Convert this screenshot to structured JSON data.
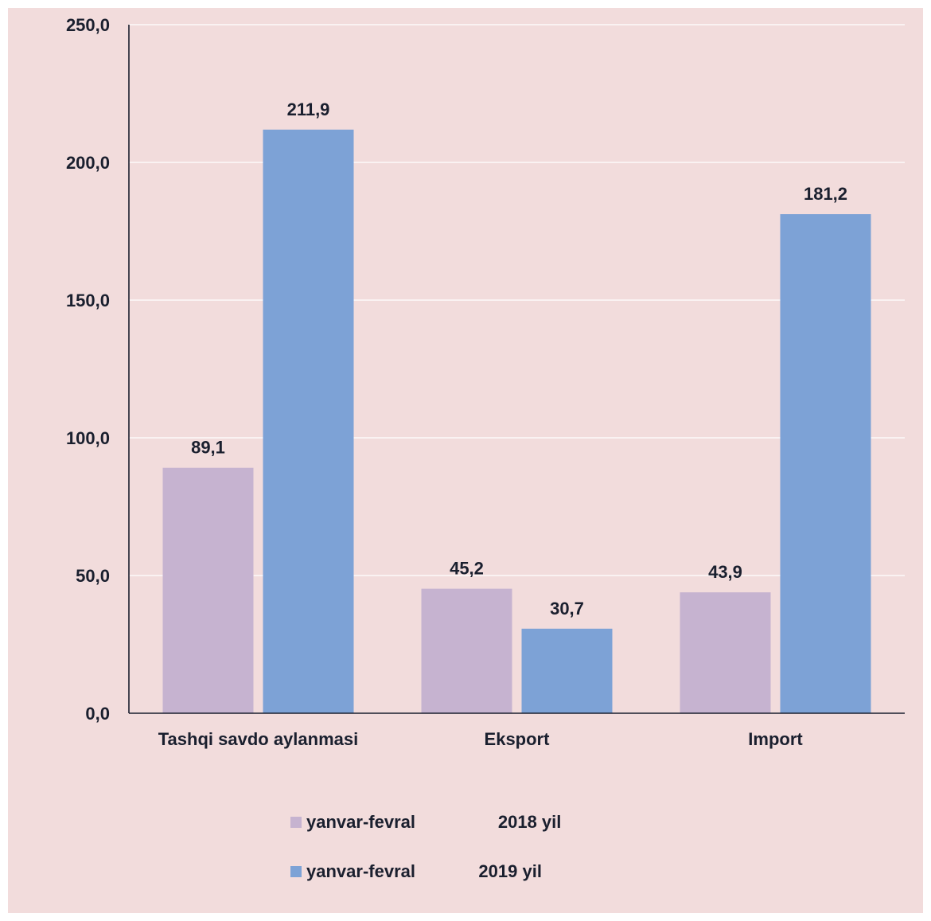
{
  "colors": {
    "background": "#f2dcdc",
    "series_2018": "#c6b3d0",
    "series_2019": "#7da2d6",
    "gridline": "#ffffff",
    "axis": "#1a1f2e",
    "text": "#1a1f2e"
  },
  "chart_data": {
    "type": "bar",
    "categories": [
      "Tashqi savdo aylanmasi",
      "Eksport",
      "Import"
    ],
    "series": [
      {
        "name": "yanvar-fevral                 2018 yil",
        "values": [
          89.1,
          45.2,
          43.9
        ]
      },
      {
        "name": "yanvar-fevral             2019 yil",
        "values": [
          211.9,
          30.7,
          181.2
        ]
      }
    ],
    "data_labels": [
      [
        "89,1",
        "45,2",
        "43,9"
      ],
      [
        "211,9",
        "30,7",
        "181,2"
      ]
    ],
    "yticks": [
      "0,0",
      "50,0",
      "100,0",
      "150,0",
      "200,0",
      "250,0"
    ],
    "ylim": [
      0,
      250
    ],
    "grid": true,
    "legend_position": "bottom",
    "title": "",
    "xlabel": "",
    "ylabel": ""
  }
}
